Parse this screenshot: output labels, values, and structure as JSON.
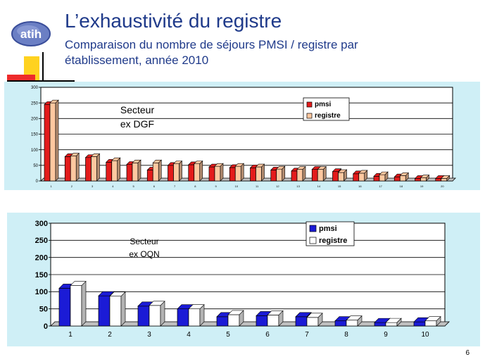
{
  "slide": {
    "title": "L’exhaustivité du registre",
    "subtitle": "Comparaison du nombre de séjours PMSI / registre par établissement, année 2010",
    "page_number": "6",
    "logo_text": "atih"
  },
  "colors": {
    "title": "#1f3a8a",
    "panel_bg": "#cfeff6",
    "chart1_pmsi": "#e31b1b",
    "chart1_registre": "#ffc8a0",
    "chart2_pmsi": "#1b1bd6",
    "chart2_registre": "#ffffff"
  },
  "chart_data": [
    {
      "type": "bar",
      "title": "",
      "annotation": [
        "Secteur",
        "ex DGF"
      ],
      "categories": [
        "1",
        "2",
        "3",
        "4",
        "5",
        "6",
        "7",
        "8",
        "9",
        "10",
        "11",
        "12",
        "13",
        "14",
        "15",
        "16",
        "17",
        "18",
        "19",
        "20"
      ],
      "series": [
        {
          "name": "pmsi",
          "values": [
            245,
            78,
            75,
            60,
            53,
            35,
            50,
            52,
            45,
            43,
            42,
            35,
            32,
            37,
            30,
            23,
            15,
            13,
            8,
            8
          ]
        },
        {
          "name": "registre",
          "values": [
            250,
            80,
            78,
            65,
            58,
            58,
            55,
            55,
            47,
            47,
            45,
            38,
            37,
            37,
            27,
            25,
            20,
            17,
            10,
            8
          ]
        }
      ],
      "yticks": [
        0,
        50,
        100,
        150,
        200,
        250,
        300
      ],
      "ylim": [
        0,
        300
      ],
      "grid": true,
      "legend": "top-right",
      "xlabel": "",
      "ylabel": ""
    },
    {
      "type": "bar",
      "title": "",
      "annotation": [
        "Secteur",
        "ex OQN"
      ],
      "categories": [
        "1",
        "2",
        "3",
        "4",
        "5",
        "6",
        "7",
        "8",
        "9",
        "10"
      ],
      "series": [
        {
          "name": "pmsi",
          "values": [
            110,
            88,
            58,
            50,
            27,
            30,
            27,
            15,
            10,
            12
          ]
        },
        {
          "name": "registre",
          "values": [
            118,
            87,
            60,
            50,
            33,
            32,
            25,
            17,
            10,
            15
          ]
        }
      ],
      "yticks": [
        0,
        50,
        100,
        150,
        200,
        250,
        300
      ],
      "ylim": [
        0,
        300
      ],
      "grid": true,
      "legend": "top-right",
      "xlabel": "",
      "ylabel": ""
    }
  ]
}
